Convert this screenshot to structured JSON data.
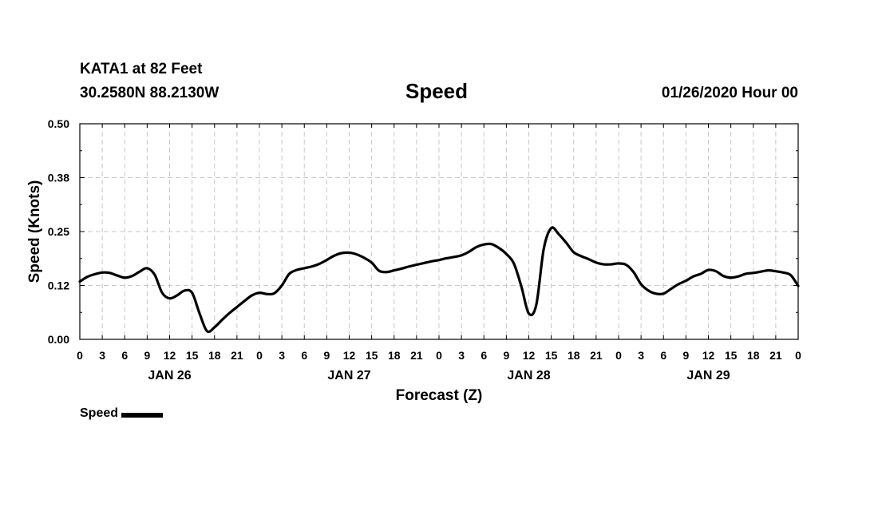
{
  "header": {
    "station": "KATA1 at 82 Feet",
    "coords": "30.2580N 88.2130W",
    "run": "01/26/2020 Hour 00"
  },
  "chart_data": {
    "type": "line",
    "title": "Speed",
    "xlabel": "Forecast (Z)",
    "ylabel": "Speed (Knots)",
    "ylim": [
      0,
      0.5
    ],
    "xlim": [
      0,
      96
    ],
    "yticks": [
      0.0,
      0.125,
      0.25,
      0.375,
      0.5
    ],
    "ytick_labels": [
      "0.00",
      "0.12",
      "0.25",
      "0.38",
      "0.50"
    ],
    "xtick_labels": [
      "0",
      "3",
      "6",
      "9",
      "12",
      "15",
      "18",
      "21",
      "0",
      "3",
      "6",
      "9",
      "12",
      "15",
      "18",
      "21",
      "0",
      "3",
      "6",
      "9",
      "12",
      "15",
      "18",
      "21",
      "0",
      "3",
      "6",
      "9",
      "12",
      "15",
      "18",
      "21",
      "0"
    ],
    "date_labels": [
      {
        "label": "JAN 26",
        "at_hour": 12
      },
      {
        "label": "JAN 27",
        "at_hour": 36
      },
      {
        "label": "JAN 28",
        "at_hour": 60
      },
      {
        "label": "JAN 29",
        "at_hour": 84
      }
    ],
    "grid": true,
    "legend_position": "bottom-left",
    "series": [
      {
        "name": "Speed",
        "color": "#000000",
        "x": [
          0,
          1,
          2,
          3,
          4,
          5,
          6,
          7,
          8,
          9,
          10,
          11,
          12,
          13,
          14,
          15,
          16,
          17,
          18,
          19,
          20,
          21,
          22,
          23,
          24,
          25,
          26,
          27,
          28,
          29,
          30,
          31,
          32,
          33,
          34,
          35,
          36,
          37,
          38,
          39,
          40,
          41,
          42,
          43,
          44,
          45,
          46,
          47,
          48,
          49,
          50,
          51,
          52,
          53,
          54,
          55,
          56,
          57,
          58,
          59,
          60,
          61,
          62,
          63,
          64,
          65,
          66,
          67,
          68,
          69,
          70,
          71,
          72,
          73,
          74,
          75,
          76,
          77,
          78,
          79,
          80,
          81,
          82,
          83,
          84,
          85,
          86,
          87,
          88,
          89,
          90,
          91,
          92,
          93,
          94,
          95,
          96
        ],
        "values": [
          0.134,
          0.145,
          0.151,
          0.155,
          0.154,
          0.148,
          0.143,
          0.147,
          0.157,
          0.165,
          0.15,
          0.108,
          0.095,
          0.102,
          0.113,
          0.108,
          0.06,
          0.019,
          0.028,
          0.045,
          0.061,
          0.075,
          0.089,
          0.102,
          0.108,
          0.105,
          0.107,
          0.125,
          0.152,
          0.161,
          0.165,
          0.169,
          0.175,
          0.184,
          0.194,
          0.2,
          0.201,
          0.197,
          0.189,
          0.178,
          0.159,
          0.156,
          0.16,
          0.164,
          0.169,
          0.173,
          0.177,
          0.181,
          0.184,
          0.188,
          0.191,
          0.195,
          0.203,
          0.214,
          0.22,
          0.221,
          0.212,
          0.198,
          0.176,
          0.123,
          0.06,
          0.08,
          0.21,
          0.258,
          0.244,
          0.224,
          0.202,
          0.193,
          0.186,
          0.178,
          0.174,
          0.174,
          0.176,
          0.173,
          0.156,
          0.128,
          0.113,
          0.106,
          0.106,
          0.117,
          0.128,
          0.136,
          0.146,
          0.152,
          0.161,
          0.158,
          0.147,
          0.143,
          0.146,
          0.152,
          0.154,
          0.157,
          0.16,
          0.158,
          0.155,
          0.149,
          0.124
        ]
      }
    ]
  }
}
